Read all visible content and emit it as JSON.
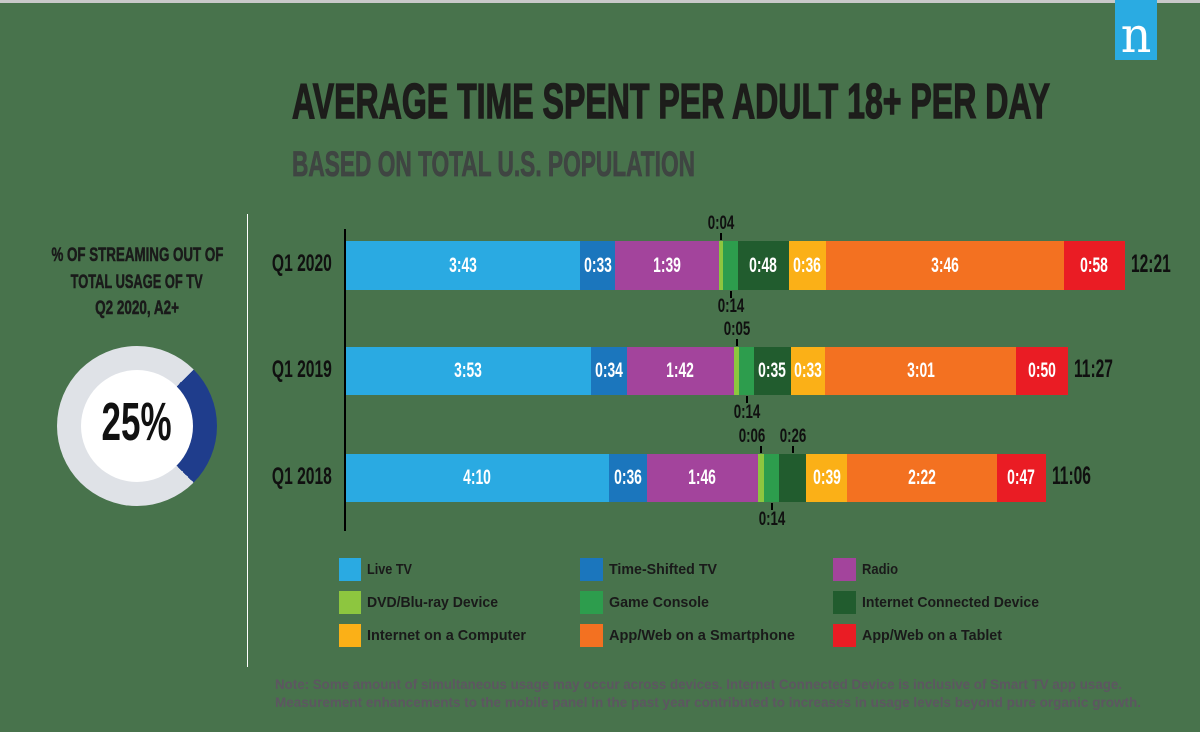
{
  "header": {
    "title": "AVERAGE TIME SPENT PER ADULT 18+ PER DAY",
    "subtitle": "BASED ON TOTAL U.S. POPULATION"
  },
  "logo": {
    "letter": "n",
    "color": "#2aabe2"
  },
  "aside": {
    "lines": [
      "% OF STREAMING OUT OF",
      "TOTAL USAGE OF TV",
      "Q2 2020, A2+"
    ],
    "donut": {
      "percent": 25,
      "percent_label": "25%",
      "wedge_color": "#1f3d8c",
      "ring_color": "#dfe2e7"
    }
  },
  "note": {
    "line1": "Note: Some amount of simultaneous usage may occur across devices. Internet Connected Device is inclusive of Smart TV app usage.",
    "line2": "Measurement enhancements to the mobile panel in the past year contributed to increases in usage levels beyond pure organic growth."
  },
  "colors": {
    "background": "#48734c",
    "topbar": "#c9c9c9",
    "title": "#1d1d1b",
    "subtitle": "#3f4542",
    "note": "#5d5661",
    "axis": "#000000",
    "separator": "#ffffff"
  },
  "chart_data": {
    "type": "bar",
    "stacked": true,
    "orientation": "horizontal",
    "title": "AVERAGE TIME SPENT PER ADULT 18+ PER DAY",
    "subtitle": "BASED ON TOTAL U.S. POPULATION",
    "unit": "hours:minutes per day",
    "categories": [
      "Q1 2020",
      "Q1 2019",
      "Q1 2018"
    ],
    "totals": [
      "12:21",
      "11:27",
      "11:06"
    ],
    "totals_minutes": [
      741,
      687,
      666
    ],
    "legend_position": "bottom",
    "series": [
      {
        "name": "Live TV",
        "color": "#2aaae2",
        "labels": [
          "3:43",
          "3:53",
          "4:10"
        ],
        "values_minutes": [
          223,
          233,
          250
        ],
        "label_pos": [
          "inside",
          "inside",
          "inside"
        ]
      },
      {
        "name": "Time-Shifted TV",
        "color": "#1b76bd",
        "labels": [
          "0:33",
          "0:34",
          "0:36"
        ],
        "values_minutes": [
          33,
          34,
          36
        ],
        "label_pos": [
          "inside",
          "inside",
          "inside"
        ]
      },
      {
        "name": "Radio",
        "color": "#a3449c",
        "labels": [
          "1:39",
          "1:42",
          "1:46"
        ],
        "values_minutes": [
          99,
          102,
          106
        ],
        "label_pos": [
          "inside",
          "inside",
          "inside"
        ]
      },
      {
        "name": "DVD/Blu-ray Device",
        "color": "#8dc63f",
        "labels": [
          "0:04",
          "0:05",
          "0:06"
        ],
        "values_minutes": [
          4,
          5,
          6
        ],
        "label_pos": [
          "above",
          "above",
          "above"
        ],
        "label_dx": [
          0,
          0,
          -9
        ]
      },
      {
        "name": "Game Console",
        "color": "#2d9d4d",
        "labels": [
          "0:14",
          "0:14",
          "0:14"
        ],
        "values_minutes": [
          14,
          14,
          14
        ],
        "label_pos": [
          "below",
          "below",
          "below"
        ]
      },
      {
        "name": "Internet Connected Device",
        "color": "#215c2e",
        "labels": [
          "0:48",
          "0:35",
          "0:26"
        ],
        "values_minutes": [
          48,
          35,
          26
        ],
        "label_pos": [
          "inside",
          "inside",
          "above"
        ]
      },
      {
        "name": "Internet on a Computer",
        "color": "#fbb017",
        "labels": [
          "0:36",
          "0:33",
          "0:39"
        ],
        "values_minutes": [
          36,
          33,
          39
        ],
        "label_pos": [
          "inside",
          "inside",
          "inside"
        ]
      },
      {
        "name": "App/Web on a Smartphone",
        "color": "#f37121",
        "labels": [
          "3:46",
          "3:01",
          "2:22"
        ],
        "values_minutes": [
          226,
          181,
          142
        ],
        "label_pos": [
          "inside",
          "inside",
          "inside"
        ]
      },
      {
        "name": "App/Web on a Tablet",
        "color": "#ea1c24",
        "labels": [
          "0:58",
          "0:50",
          "0:47"
        ],
        "values_minutes": [
          58,
          50,
          47
        ],
        "label_pos": [
          "inside",
          "inside",
          "inside"
        ]
      }
    ],
    "legend_label_widths": [
      45,
      108,
      36,
      131,
      100,
      177,
      159,
      186,
      140
    ]
  }
}
